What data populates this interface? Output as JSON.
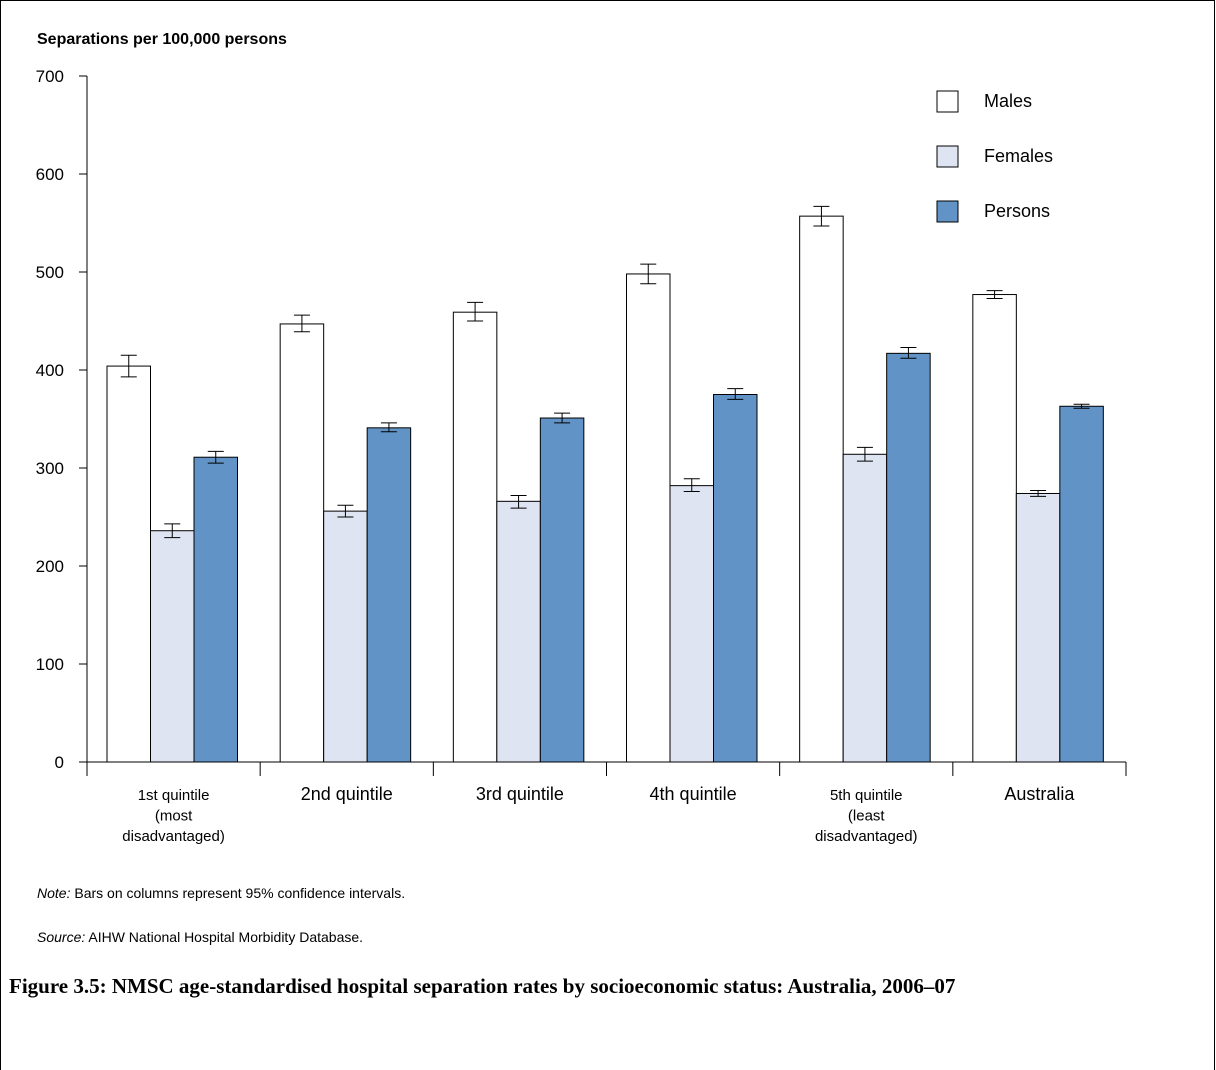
{
  "chart_data": {
    "type": "bar",
    "ylabel": "Separations per 100,000 persons",
    "ylim": [
      0,
      700
    ],
    "yticks": [
      0,
      100,
      200,
      300,
      400,
      500,
      600,
      700
    ],
    "categories": [
      [
        "1st quintile",
        "(most",
        "disadvantaged)"
      ],
      [
        "2nd quintile"
      ],
      [
        "3rd quintile"
      ],
      [
        "4th quintile"
      ],
      [
        "5th quintile",
        "(least",
        "disadvantaged)"
      ],
      [
        "Australia"
      ]
    ],
    "series": [
      {
        "name": "Males",
        "color": "#ffffff",
        "values": [
          404,
          447,
          459,
          498,
          557,
          477
        ],
        "ci_low": [
          393,
          439,
          450,
          488,
          547,
          473
        ],
        "ci_high": [
          415,
          456,
          469,
          508,
          567,
          481
        ]
      },
      {
        "name": "Females",
        "color": "#dfe4f2",
        "values": [
          236,
          256,
          266,
          282,
          314,
          274
        ],
        "ci_low": [
          229,
          250,
          259,
          276,
          307,
          271
        ],
        "ci_high": [
          243,
          262,
          272,
          289,
          321,
          277
        ]
      },
      {
        "name": "Persons",
        "color": "#6193c6",
        "values": [
          311,
          341,
          351,
          375,
          417,
          363
        ],
        "ci_low": [
          305,
          337,
          346,
          370,
          412,
          361
        ],
        "ci_high": [
          317,
          346,
          356,
          381,
          423,
          365
        ]
      }
    ],
    "legend_position": "top-right",
    "grid": false
  },
  "note": {
    "label": "Note:",
    "text": " Bars on columns represent 95% confidence intervals."
  },
  "source": {
    "label": "Source:",
    "text": " AIHW National Hospital Morbidity Database."
  },
  "caption": "Figure 3.5: NMSC age-standardised hospital separation rates by socioeconomic status: Australia, 2006–07"
}
